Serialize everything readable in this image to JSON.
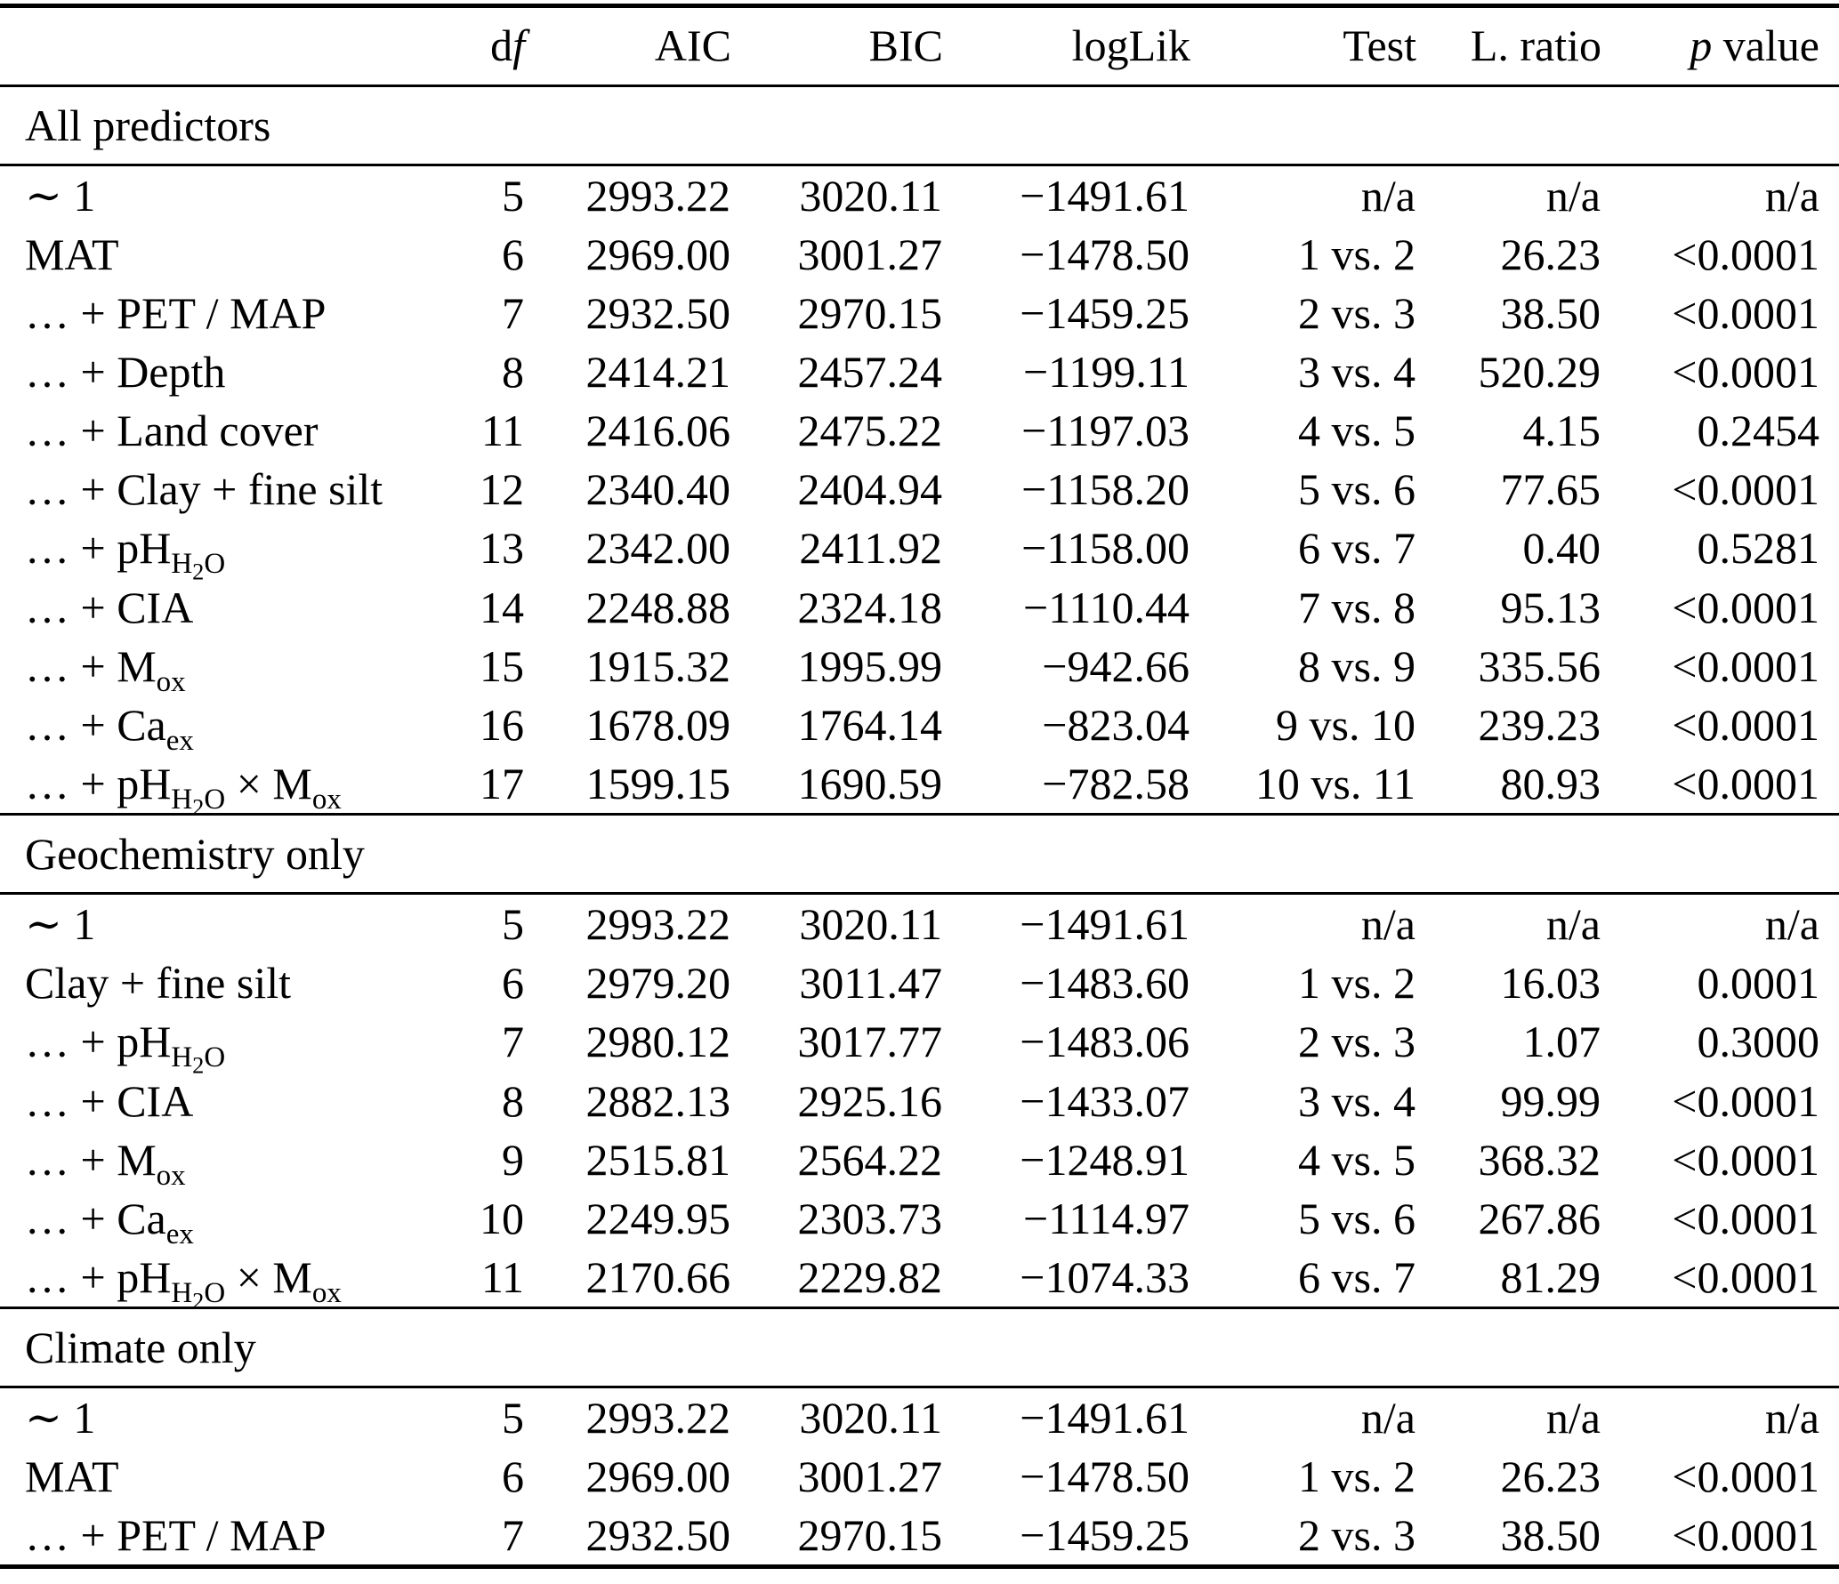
{
  "colors": {
    "text": "#000000",
    "background": "#ffffff"
  },
  "header": {
    "cols": [
      "d<i>f</i>",
      "AIC",
      "BIC",
      "logLik",
      "Test",
      "L. ratio",
      "<i>p</i> value"
    ]
  },
  "sections": [
    {
      "title": "All predictors",
      "rows": [
        {
          "label": "∼ 1",
          "df": "5",
          "aic": "2993.22",
          "bic": "3020.11",
          "loglik": "−1491.61",
          "test": "n/a",
          "lratio": "n/a",
          "p": "n/a"
        },
        {
          "label": "MAT",
          "df": "6",
          "aic": "2969.00",
          "bic": "3001.27",
          "loglik": "−1478.50",
          "test": "1 vs. 2",
          "lratio": "26.23",
          "p": "<0.0001"
        },
        {
          "label": "… + PET / MAP",
          "df": "7",
          "aic": "2932.50",
          "bic": "2970.15",
          "loglik": "−1459.25",
          "test": "2 vs. 3",
          "lratio": "38.50",
          "p": "<0.0001"
        },
        {
          "label": "… + Depth",
          "df": "8",
          "aic": "2414.21",
          "bic": "2457.24",
          "loglik": "−1199.11",
          "test": "3 vs. 4",
          "lratio": "520.29",
          "p": "<0.0001"
        },
        {
          "label": "… + Land cover",
          "df": "11",
          "aic": "2416.06",
          "bic": "2475.22",
          "loglik": "−1197.03",
          "test": "4 vs. 5",
          "lratio": "4.15",
          "p": "0.2454"
        },
        {
          "label": "… + Clay + fine silt",
          "df": "12",
          "aic": "2340.40",
          "bic": "2404.94",
          "loglik": "−1158.20",
          "test": "5 vs. 6",
          "lratio": "77.65",
          "p": "<0.0001"
        },
        {
          "label": "… + pH<sub>H<sub>2</sub>O</sub>",
          "df": "13",
          "aic": "2342.00",
          "bic": "2411.92",
          "loglik": "−1158.00",
          "test": "6 vs. 7",
          "lratio": "0.40",
          "p": "0.5281"
        },
        {
          "label": "… + CIA",
          "df": "14",
          "aic": "2248.88",
          "bic": "2324.18",
          "loglik": "−1110.44",
          "test": "7 vs. 8",
          "lratio": "95.13",
          "p": "<0.0001"
        },
        {
          "label": "… + M<sub>ox</sub>",
          "df": "15",
          "aic": "1915.32",
          "bic": "1995.99",
          "loglik": "−942.66",
          "test": "8 vs. 9",
          "lratio": "335.56",
          "p": "<0.0001"
        },
        {
          "label": "… + Ca<sub>ex</sub>",
          "df": "16",
          "aic": "1678.09",
          "bic": "1764.14",
          "loglik": "−823.04",
          "test": "9 vs. 10",
          "lratio": "239.23",
          "p": "<0.0001"
        },
        {
          "label": "… + pH<sub>H<sub>2</sub>O</sub> × M<sub>ox</sub>",
          "df": "17",
          "aic": "1599.15",
          "bic": "1690.59",
          "loglik": "−782.58",
          "test": "10 vs. 11",
          "lratio": "80.93",
          "p": "<0.0001"
        }
      ]
    },
    {
      "title": "Geochemistry only",
      "rows": [
        {
          "label": "∼ 1",
          "df": "5",
          "aic": "2993.22",
          "bic": "3020.11",
          "loglik": "−1491.61",
          "test": "n/a",
          "lratio": "n/a",
          "p": "n/a"
        },
        {
          "label": "Clay + fine silt",
          "df": "6",
          "aic": "2979.20",
          "bic": "3011.47",
          "loglik": "−1483.60",
          "test": "1 vs. 2",
          "lratio": "16.03",
          "p": "0.0001"
        },
        {
          "label": "… + pH<sub>H<sub>2</sub>O</sub>",
          "df": "7",
          "aic": "2980.12",
          "bic": "3017.77",
          "loglik": "−1483.06",
          "test": "2 vs. 3",
          "lratio": "1.07",
          "p": "0.3000"
        },
        {
          "label": "… + CIA",
          "df": "8",
          "aic": "2882.13",
          "bic": "2925.16",
          "loglik": "−1433.07",
          "test": "3 vs. 4",
          "lratio": "99.99",
          "p": "<0.0001"
        },
        {
          "label": "… + M<sub>ox</sub>",
          "df": "9",
          "aic": "2515.81",
          "bic": "2564.22",
          "loglik": "−1248.91",
          "test": "4 vs. 5",
          "lratio": "368.32",
          "p": "<0.0001"
        },
        {
          "label": "… + Ca<sub>ex</sub>",
          "df": "10",
          "aic": "2249.95",
          "bic": "2303.73",
          "loglik": "−1114.97",
          "test": "5 vs. 6",
          "lratio": "267.86",
          "p": "<0.0001"
        },
        {
          "label": "… + pH<sub>H<sub>2</sub>O</sub> × M<sub>ox</sub>",
          "df": "11",
          "aic": "2170.66",
          "bic": "2229.82",
          "loglik": "−1074.33",
          "test": "6 vs. 7",
          "lratio": "81.29",
          "p": "<0.0001"
        }
      ]
    },
    {
      "title": "Climate only",
      "rows": [
        {
          "label": "∼ 1",
          "df": "5",
          "aic": "2993.22",
          "bic": "3020.11",
          "loglik": "−1491.61",
          "test": "n/a",
          "lratio": "n/a",
          "p": "n/a"
        },
        {
          "label": "MAT",
          "df": "6",
          "aic": "2969.00",
          "bic": "3001.27",
          "loglik": "−1478.50",
          "test": "1 vs. 2",
          "lratio": "26.23",
          "p": "<0.0001"
        },
        {
          "label": "… + PET / MAP",
          "df": "7",
          "aic": "2932.50",
          "bic": "2970.15",
          "loglik": "−1459.25",
          "test": "2 vs. 3",
          "lratio": "38.50",
          "p": "<0.0001"
        }
      ]
    }
  ]
}
